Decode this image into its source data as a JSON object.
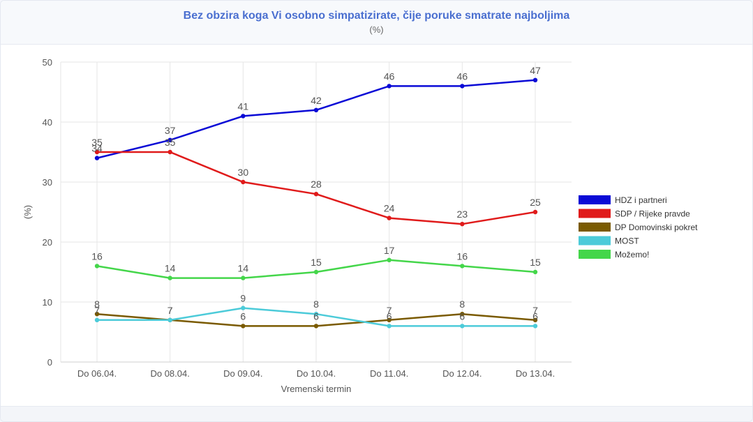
{
  "chart_data": {
    "type": "line",
    "title": "Bez obzira koga Vi osobno simpatizirate, čije poruke smatrate najboljima",
    "subtitle": "(%)",
    "xlabel": "Vremenski termin",
    "ylabel": "(%)",
    "ylim": [
      0,
      50
    ],
    "yticks": [
      "0",
      "10",
      "20",
      "30",
      "40",
      "50"
    ],
    "categories": [
      "Do 06.04.",
      "Do 08.04.",
      "Do 09.04.",
      "Do 10.04.",
      "Do 11.04.",
      "Do 12.04.",
      "Do 13.04."
    ],
    "grid": true,
    "legend_position": "right",
    "series": [
      {
        "name": "HDZ i partneri",
        "color": "#0a0ad6",
        "values": [
          34,
          37,
          41,
          42,
          46,
          46,
          47
        ]
      },
      {
        "name": "SDP / Rijeke pravde",
        "color": "#e01b1b",
        "values": [
          35,
          35,
          30,
          28,
          24,
          23,
          25
        ]
      },
      {
        "name": "DP Domovinski pokret",
        "color": "#7a5a00",
        "values": [
          8,
          7,
          6,
          6,
          7,
          8,
          7
        ]
      },
      {
        "name": "MOST",
        "color": "#4ccbd9",
        "values": [
          7,
          7,
          9,
          8,
          6,
          6,
          6
        ]
      },
      {
        "name": "Možemo!",
        "color": "#44d64a",
        "values": [
          16,
          14,
          14,
          15,
          17,
          16,
          15
        ]
      }
    ]
  }
}
